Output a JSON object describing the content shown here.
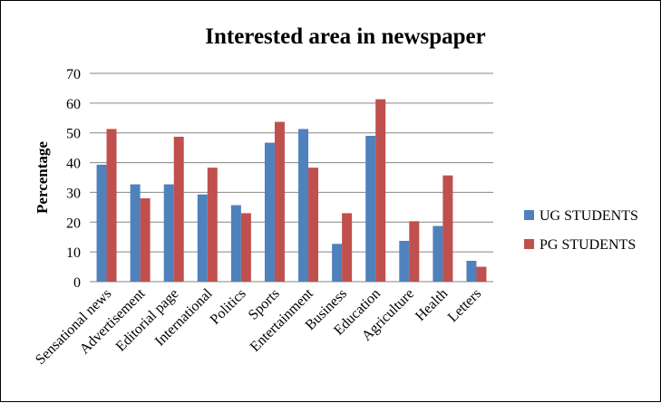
{
  "chart_data": {
    "type": "bar",
    "title": "Interested area in newspaper",
    "xlabel": "",
    "ylabel": "Percentage",
    "ylim": [
      0,
      70
    ],
    "yticks": [
      0,
      10,
      20,
      30,
      40,
      50,
      60,
      70
    ],
    "grid": true,
    "legend_position": "right",
    "categories": [
      "Sensational news",
      "Advertisement",
      "Editorial page",
      "International",
      "Politics",
      "Sports",
      "Entertainment",
      "Business",
      "Education",
      "Agriculture",
      "Health",
      "Letters"
    ],
    "series": [
      {
        "name": "UG STUDENTS",
        "color": "#4F81BD",
        "values": [
          39.3,
          32.7,
          32.7,
          29.3,
          25.7,
          46.7,
          51.3,
          12.7,
          49.0,
          13.7,
          18.7,
          7.0
        ]
      },
      {
        "name": "PG STUDENTS",
        "color": "#C0504D",
        "values": [
          51.3,
          28.0,
          48.7,
          38.3,
          23.0,
          53.7,
          38.3,
          23.0,
          61.3,
          20.3,
          35.7,
          5.0
        ]
      }
    ]
  }
}
